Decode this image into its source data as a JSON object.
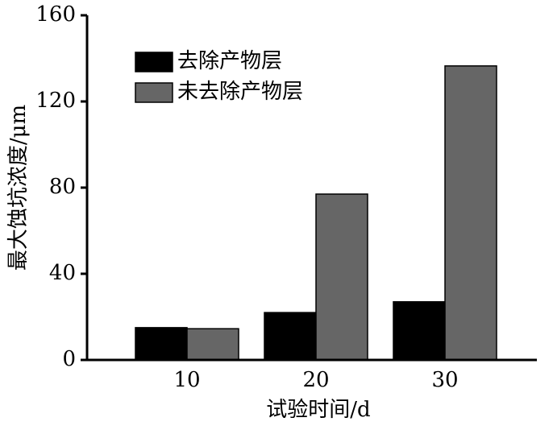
{
  "chart_data": {
    "type": "bar",
    "x_label": "试验时间/d",
    "y_label": "最大蚀坑浓度/μm",
    "categories": [
      "10",
      "20",
      "30"
    ],
    "series": [
      {
        "name": "去除产物层",
        "color": "#000000",
        "values": [
          15,
          22,
          27
        ]
      },
      {
        "name": "未去除产物层",
        "color": "#666666",
        "values": [
          14.5,
          77,
          136.5
        ]
      }
    ],
    "ylim": [
      0,
      160
    ],
    "yticks": [
      0,
      40,
      80,
      120,
      160
    ]
  }
}
